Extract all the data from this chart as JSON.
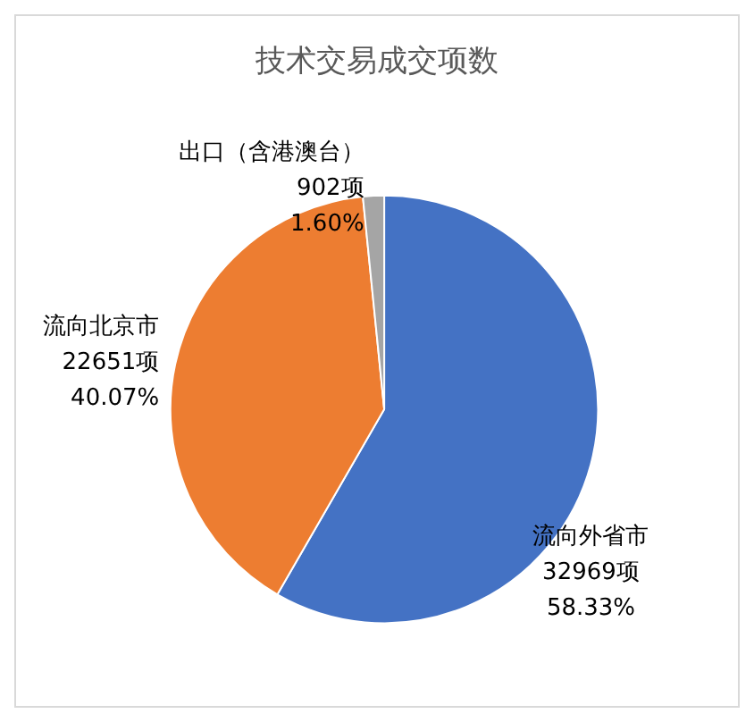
{
  "chart_data": {
    "type": "pie",
    "title": "技术交易成交项数",
    "categories": [
      "流向外省市",
      "流向北京市",
      "出口（含港澳台）"
    ],
    "values": [
      32969,
      22651,
      902
    ],
    "value_labels": [
      "32969项\n58.33%",
      "22651项\n40.07%",
      "902项\n1.60%"
    ],
    "colors": [
      "#4472c4",
      "#ed7d31",
      "#a5a5a5"
    ],
    "legend": false
  }
}
